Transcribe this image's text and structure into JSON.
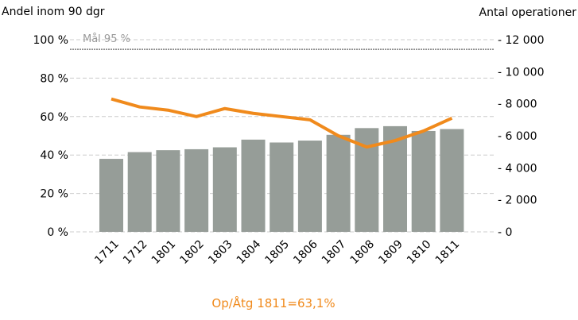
{
  "chart_data": {
    "type": "bar",
    "left_axis_label": "Andel inom 90 dgr",
    "right_axis_label": "Antal operationer",
    "categories": [
      "1711",
      "1712",
      "1801",
      "1802",
      "1803",
      "1804",
      "1805",
      "1806",
      "1807",
      "1808",
      "1809",
      "1810",
      "1811"
    ],
    "series": [
      {
        "type": "bar",
        "axis": "left",
        "unit": "%",
        "values": [
          38,
          41.5,
          42.5,
          43,
          44,
          48,
          46.5,
          47.5,
          50.5,
          54,
          55,
          52.5,
          53.5
        ]
      },
      {
        "type": "line",
        "axis": "right",
        "values": [
          8300,
          7800,
          7600,
          7200,
          7700,
          7400,
          7200,
          7000,
          6000,
          5300,
          5700,
          6300,
          7100
        ]
      }
    ],
    "left_axis": {
      "min": 0,
      "max": 100,
      "ticks": [
        "0 %",
        "20 %",
        "40 %",
        "60 %",
        "80 %",
        "100 %"
      ],
      "tick_values": [
        0,
        20,
        40,
        60,
        80,
        100
      ]
    },
    "right_axis": {
      "min": 0,
      "max": 12000,
      "ticks": [
        "- 0",
        "- 2 000",
        "- 4 000",
        "- 6 000",
        "- 8 000",
        "- 10 000",
        "- 12 000"
      ],
      "tick_values": [
        0,
        2000,
        4000,
        6000,
        8000,
        10000,
        12000
      ]
    },
    "goal": {
      "label": "Mål 95 %",
      "value": 95
    },
    "grid": true,
    "footnote": "Op/Åtg 1811=63,1%",
    "colors": {
      "bars": "#969d98",
      "line": "#f08a1c",
      "footnote": "#f08a1c",
      "grid": "#cccccc",
      "goal_line": "#7f7f7f"
    }
  }
}
